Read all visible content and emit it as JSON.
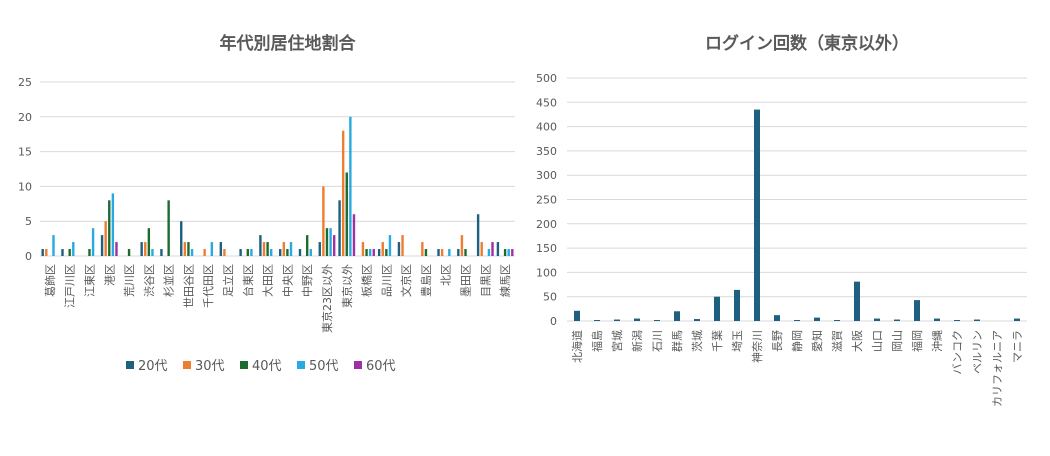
{
  "colors": {
    "20代": "#1f5f7f",
    "30代": "#ed7d31",
    "40代": "#1e6b30",
    "50代": "#27a9e1",
    "60代": "#9e30a6",
    "text": "#595959",
    "grid": "#d9d9d9"
  },
  "chart_data": [
    {
      "type": "bar",
      "title": "年代別居住地割合",
      "xlabel": "",
      "ylabel": "",
      "ylim": [
        0,
        25
      ],
      "yticks": [
        0,
        5,
        10,
        15,
        20,
        25
      ],
      "grid": true,
      "legend_position": "bottom",
      "categories": [
        "葛飾区",
        "江戸川区",
        "江東区",
        "港区",
        "荒川区",
        "渋谷区",
        "杉並区",
        "世田谷区",
        "千代田区",
        "足立区",
        "台東区",
        "大田区",
        "中央区",
        "中野区",
        "東京23区以外",
        "東京以外",
        "板橋区",
        "品川区",
        "文京区",
        "豊島区",
        "北区",
        "墨田区",
        "目黒区",
        "練馬区"
      ],
      "series": [
        {
          "name": "20代",
          "values": [
            1,
            1,
            0,
            3,
            0,
            2,
            1,
            5,
            0,
            2,
            1,
            3,
            1,
            1,
            2,
            8,
            0,
            1,
            2,
            0,
            1,
            1,
            6,
            2
          ]
        },
        {
          "name": "30代",
          "values": [
            1,
            0,
            0,
            5,
            0,
            2,
            0,
            2,
            1,
            1,
            0,
            2,
            2,
            0,
            10,
            18,
            2,
            2,
            3,
            2,
            1,
            3,
            2,
            0
          ]
        },
        {
          "name": "40代",
          "values": [
            0,
            1,
            1,
            8,
            1,
            4,
            8,
            2,
            0,
            0,
            1,
            2,
            1,
            3,
            4,
            12,
            1,
            1,
            0,
            1,
            0,
            1,
            0,
            1
          ]
        },
        {
          "name": "50代",
          "values": [
            3,
            2,
            4,
            9,
            0,
            1,
            0,
            1,
            2,
            0,
            1,
            1,
            2,
            1,
            4,
            20,
            1,
            3,
            0,
            0,
            1,
            0,
            1,
            1
          ]
        },
        {
          "name": "60代",
          "values": [
            0,
            0,
            0,
            2,
            0,
            0,
            0,
            0,
            0,
            0,
            0,
            0,
            0,
            0,
            3,
            6,
            1,
            0,
            0,
            0,
            0,
            0,
            2,
            1
          ]
        }
      ]
    },
    {
      "type": "bar",
      "title": "ログイン回数（東京以外）",
      "xlabel": "",
      "ylabel": "",
      "ylim": [
        0,
        500
      ],
      "yticks": [
        0,
        50,
        100,
        150,
        200,
        250,
        300,
        350,
        400,
        450,
        500
      ],
      "grid": true,
      "categories": [
        "北海道",
        "福島",
        "宮城",
        "新潟",
        "石川",
        "群馬",
        "茨城",
        "千葉",
        "埼玉",
        "神奈川",
        "長野",
        "静岡",
        "愛知",
        "滋賀",
        "大阪",
        "山口",
        "岡山",
        "福岡",
        "沖縄",
        "バンコク",
        "ベルリン",
        "カリフォルニア",
        "マニラ"
      ],
      "values": [
        21,
        2,
        3,
        5,
        2,
        20,
        4,
        50,
        64,
        435,
        12,
        2,
        7,
        2,
        81,
        5,
        3,
        43,
        5,
        2,
        3,
        0,
        5
      ]
    }
  ]
}
